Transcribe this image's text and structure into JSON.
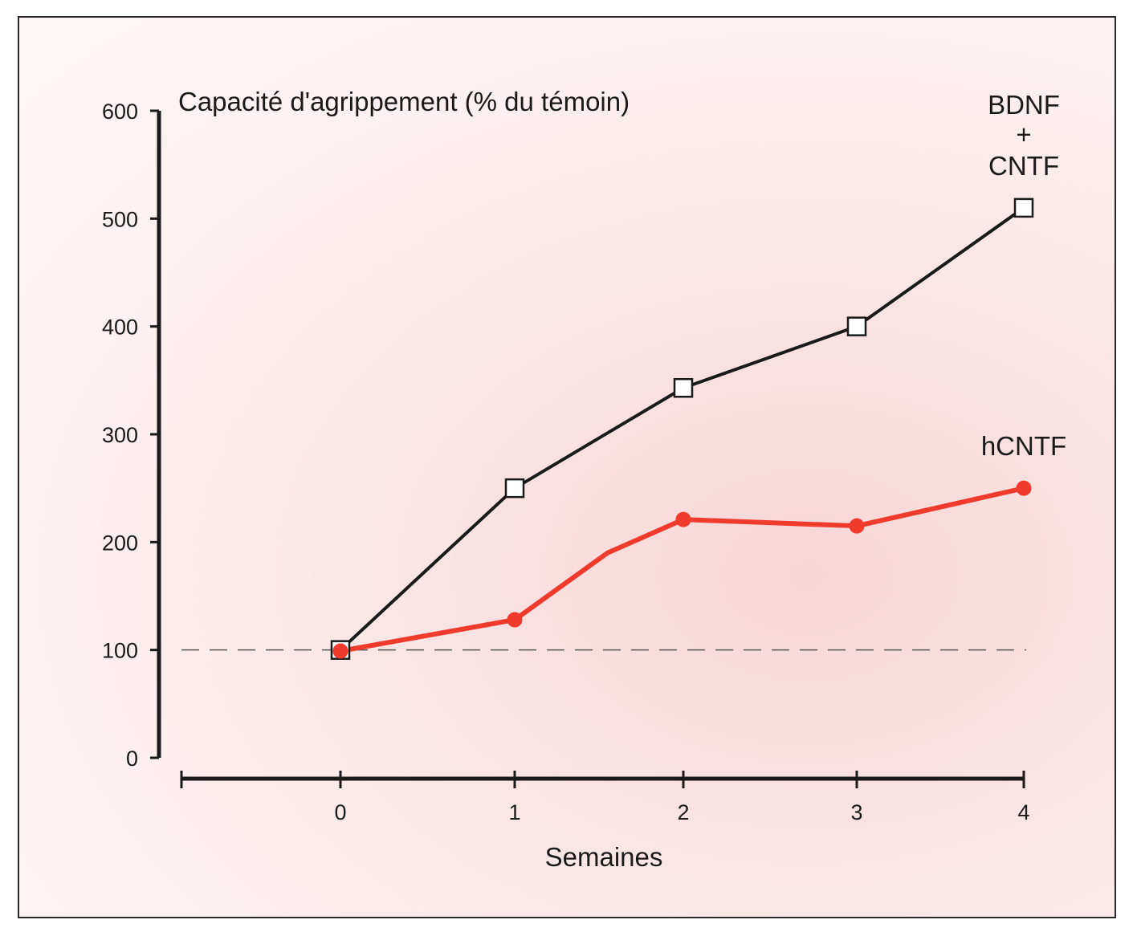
{
  "chart_data": {
    "type": "line",
    "ylabel": "Capacité d'agrippement (% du témoin)",
    "xlabel": "Semaines",
    "x": [
      0,
      1,
      2,
      3,
      4
    ],
    "ylim": [
      0,
      600
    ],
    "yticks": [
      "0",
      "100",
      "200",
      "300",
      "400",
      "500",
      "600"
    ],
    "xticks": [
      "0",
      "1",
      "2",
      "3",
      "4"
    ],
    "reference_line": {
      "y": 100,
      "style": "dashed"
    },
    "grid": false,
    "series": [
      {
        "name_lines": [
          "BDNF",
          "+",
          "CNTF"
        ],
        "x": [
          0,
          1,
          2,
          3,
          4
        ],
        "values": [
          100,
          250,
          343,
          400,
          510
        ],
        "color": "#1a1a1a",
        "marker": "open-square"
      },
      {
        "name": "hCNTF",
        "x": [
          0,
          1,
          1.55,
          2,
          3,
          4
        ],
        "values": [
          99,
          128,
          190,
          221,
          215,
          250
        ],
        "marker_x": [
          0,
          1,
          2,
          3,
          4
        ],
        "marker_values": [
          99,
          128,
          221,
          215,
          250
        ],
        "color": "#f03a2c",
        "marker": "filled-circle"
      }
    ]
  }
}
